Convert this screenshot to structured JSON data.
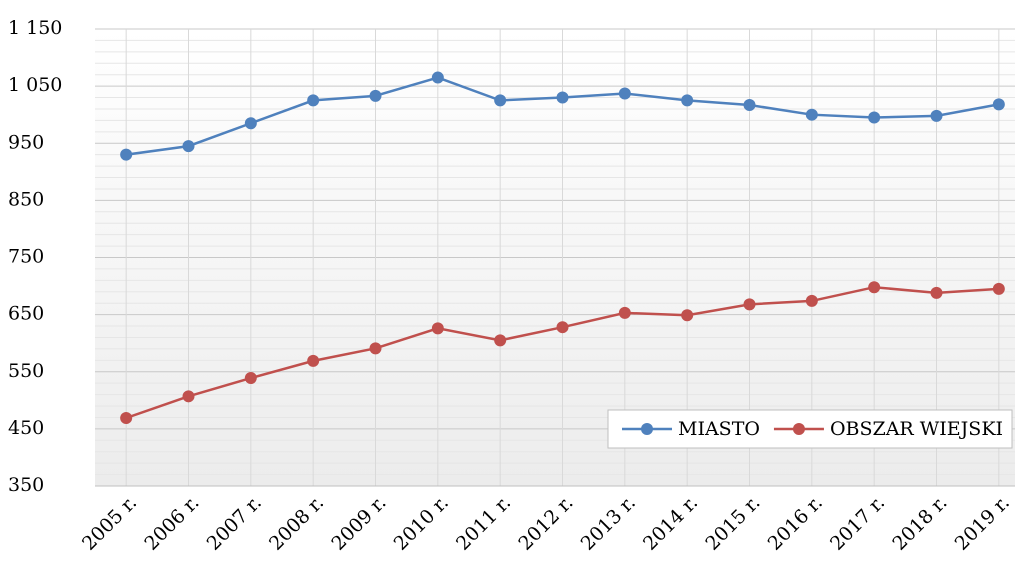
{
  "chart_data": {
    "type": "line",
    "categories": [
      "2005 r.",
      "2006 r.",
      "2007 r.",
      "2008 r.",
      "2009 r.",
      "2010 r.",
      "2011 r.",
      "2012 r.",
      "2013 r.",
      "2014 r.",
      "2015 r.",
      "2016 r.",
      "2017 r.",
      "2018 r.",
      "2019 r."
    ],
    "series": [
      {
        "name": "MIASTO",
        "color": "#4f81bd",
        "values": [
          930,
          945,
          985,
          1025,
          1033,
          1065,
          1025,
          1030,
          1037,
          1025,
          1017,
          1000,
          995,
          998,
          1018
        ]
      },
      {
        "name": "OBSZAR WIEJSKI",
        "color": "#c0504d",
        "values": [
          469,
          507,
          539,
          569,
          591,
          626,
          605,
          628,
          653,
          649,
          668,
          674,
          698,
          688,
          695
        ]
      }
    ],
    "ylim": [
      350,
      1150
    ],
    "yticks": [
      350,
      450,
      550,
      650,
      750,
      850,
      950,
      {
        "value": 1050,
        "label": "1 050"
      },
      {
        "value": 1150,
        "label": "1 150"
      }
    ],
    "minor_yticks": [
      370,
      390,
      410,
      430,
      470,
      490,
      510,
      530,
      570,
      590,
      610,
      630,
      670,
      690,
      710,
      730,
      770,
      790,
      810,
      830,
      870,
      890,
      910,
      930,
      970,
      990,
      1010,
      1030,
      1070,
      1090,
      1110,
      1130
    ],
    "grid": true,
    "legend": "lower right"
  }
}
